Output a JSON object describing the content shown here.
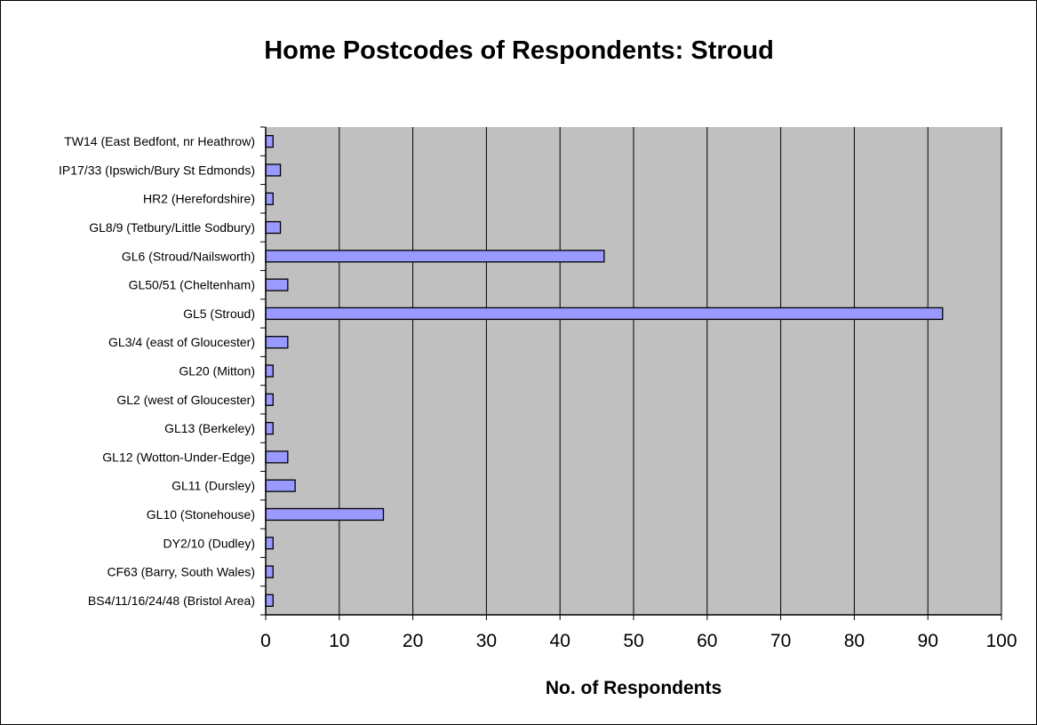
{
  "chart_data": {
    "type": "bar",
    "orientation": "horizontal",
    "title": "Home Postcodes of Respondents: Stroud",
    "xlabel": "No. of Respondents",
    "ylabel": "",
    "xlim": [
      0,
      100
    ],
    "xticks": [
      0,
      10,
      20,
      30,
      40,
      50,
      60,
      70,
      80,
      90,
      100
    ],
    "grid": "vertical",
    "legend": "none",
    "categories": [
      "TW14 (East Bedfont, nr Heathrow)",
      "IP17/33 (Ipswich/Bury St Edmonds)",
      "HR2 (Herefordshire)",
      "GL8/9 (Tetbury/Little Sodbury)",
      "GL6 (Stroud/Nailsworth)",
      "GL50/51 (Cheltenham)",
      "GL5 (Stroud)",
      "GL3/4 (east of Gloucester)",
      "GL20 (Mitton)",
      "GL2 (west of Gloucester)",
      "GL13 (Berkeley)",
      "GL12 (Wotton-Under-Edge)",
      "GL11 (Dursley)",
      "GL10 (Stonehouse)",
      "DY2/10 (Dudley)",
      "CF63 (Barry, South Wales)",
      "BS4/11/16/24/48 (Bristol Area)"
    ],
    "values": [
      1,
      2,
      1,
      2,
      46,
      3,
      92,
      3,
      1,
      1,
      1,
      3,
      4,
      16,
      1,
      1,
      1
    ]
  },
  "colors": {
    "plot_background": "#c0c0c0",
    "bar_fill": "#9999ff",
    "bar_stroke": "#000000",
    "gridline": "#000000"
  }
}
